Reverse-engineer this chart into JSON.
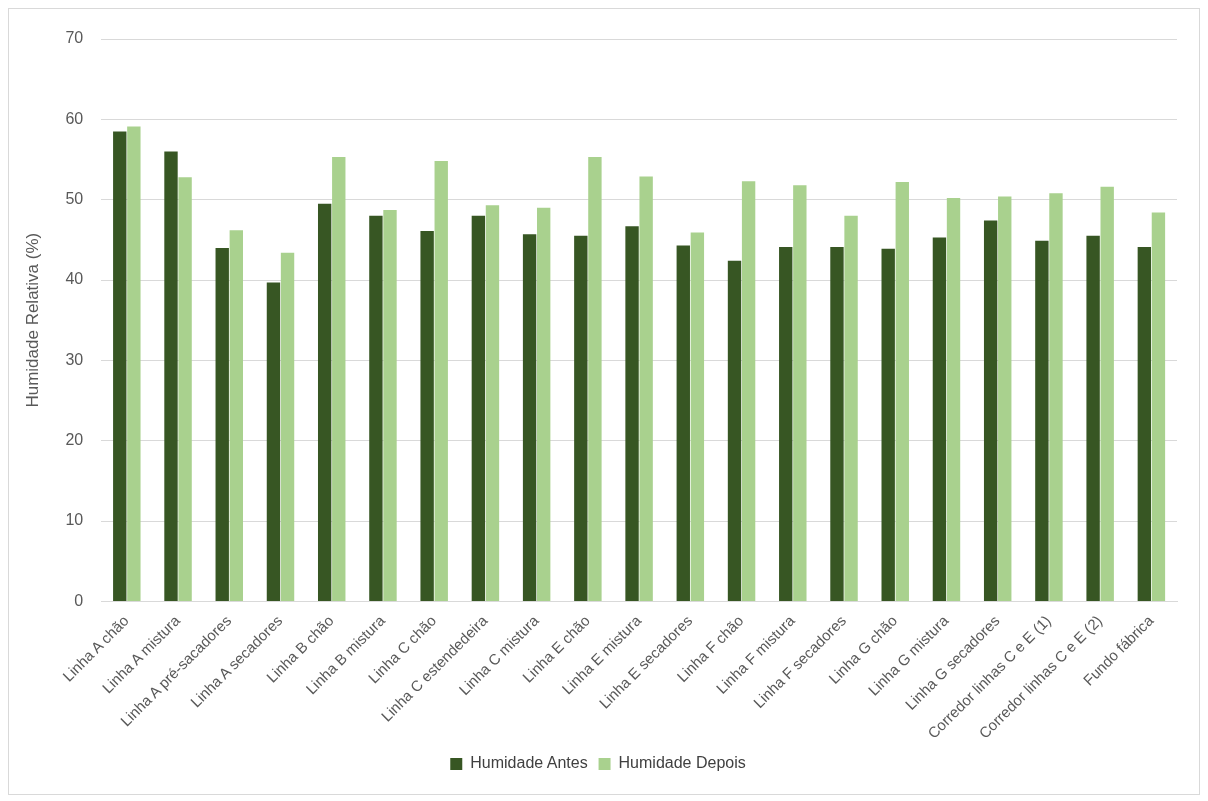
{
  "chart_data": {
    "type": "bar",
    "ylabel": "Humidade Relativa (%)",
    "categories": [
      "Linha A chão",
      "Linha A mistura",
      "Linha A pré-sacadores",
      "Linha A secadores",
      "Linha B chão",
      "Linha B mistura",
      "Linha C chão",
      "Linha C estendedeira",
      "Linha C mistura",
      "Linha E chão",
      "Linha E mistura",
      "Linha E secadores",
      "Linha F chão",
      "Linha F mistura",
      "Linha F secadores",
      "Linha G chão",
      "Linha G mistura",
      "Linha G secadores",
      "Corredor linhas C e E (1)",
      "Corredor linhas C e E (2)",
      "Fundo fábrica"
    ],
    "series": [
      {
        "name": "Humidade Antes",
        "color": "#375623",
        "values": [
          58.5,
          56,
          44,
          39.7,
          49.5,
          48,
          46.1,
          48,
          45.7,
          45.5,
          46.7,
          44.3,
          42.4,
          44.1,
          44.1,
          43.9,
          45.3,
          47.4,
          44.9,
          45.5,
          44.1
        ]
      },
      {
        "name": "Humidade Depois",
        "color": "#a9d18e",
        "values": [
          59.1,
          52.8,
          46.2,
          43.4,
          55.3,
          48.7,
          54.8,
          49.3,
          49,
          55.3,
          52.9,
          45.9,
          52.3,
          51.8,
          48,
          52.2,
          50.2,
          50.4,
          50.8,
          51.6,
          48.4
        ]
      }
    ],
    "ylim": [
      0,
      70
    ],
    "yticks": [
      0,
      10,
      20,
      30,
      40,
      50,
      60,
      70
    ],
    "grid": "y",
    "legend": "bottom"
  }
}
